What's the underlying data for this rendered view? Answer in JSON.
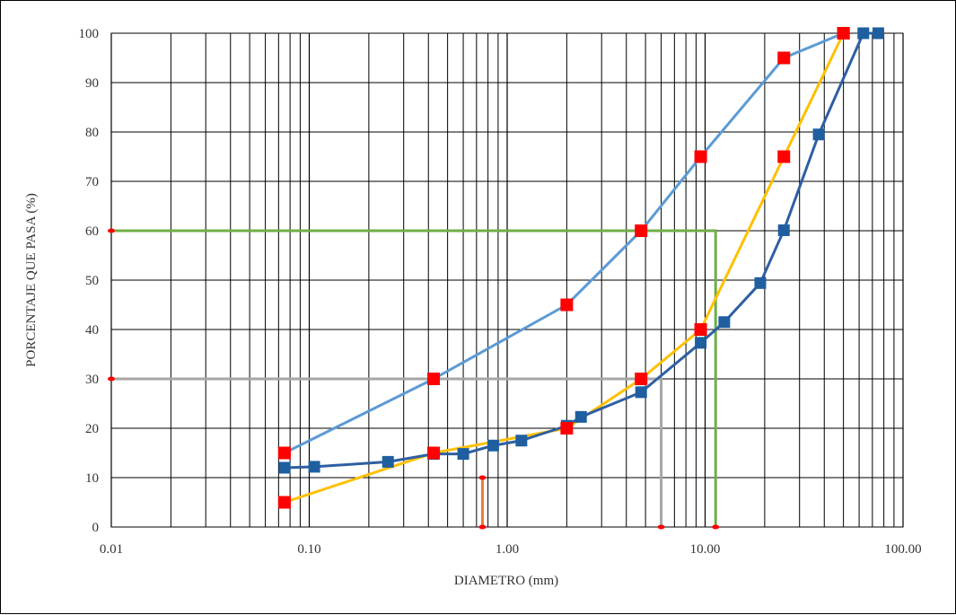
{
  "chart_data": {
    "type": "line",
    "xlabel": "DIAMETRO (mm)",
    "ylabel": "PORCENTAJE QUE PASA (%)",
    "x_scale": "log",
    "xlim": [
      0.01,
      100
    ],
    "ylim": [
      0,
      100
    ],
    "x_tick_labels": [
      "0.01",
      "0.10",
      "1.00",
      "10.00",
      "100.00"
    ],
    "x_tick_values": [
      0.01,
      0.1,
      1,
      10,
      100
    ],
    "y_tick_values": [
      0,
      10,
      20,
      30,
      40,
      50,
      60,
      70,
      80,
      90,
      100
    ],
    "grid": true,
    "legend": "none",
    "series": [
      {
        "color": "#5B9BD5",
        "marker": "none",
        "x": [
          0.075,
          0.425,
          2.0,
          4.75,
          9.5,
          25.0,
          50.0
        ],
        "y": [
          15,
          30,
          45,
          60,
          75,
          95,
          100
        ]
      },
      {
        "color": "#FFC000",
        "marker": "none",
        "x": [
          0.075,
          0.425,
          2.0,
          4.75,
          9.5,
          25.0,
          50.0
        ],
        "y": [
          5,
          15,
          20,
          30,
          40,
          75,
          100
        ]
      },
      {
        "color": "#2E5FA3",
        "marker": "square",
        "marker_color": "#1F5FA0",
        "x": [
          0.075,
          0.106,
          0.25,
          0.425,
          0.6,
          0.85,
          1.18,
          2.0,
          2.36,
          4.75,
          9.5,
          12.5,
          19.0,
          25.0,
          37.5,
          63.0,
          75.0
        ],
        "y": [
          12,
          12.2,
          13.2,
          14.8,
          14.8,
          16.5,
          17.5,
          20.5,
          22.3,
          27.3,
          37.3,
          41.5,
          49.4,
          60.1,
          79.5,
          100,
          100
        ]
      },
      {
        "color": "#FF0000",
        "marker": "square",
        "line": "none",
        "x": [
          0.075,
          0.425,
          2.0,
          4.75,
          9.5,
          25.0,
          50.0,
          0.075,
          0.425,
          2.0,
          4.75,
          9.5,
          25.0,
          50.0
        ],
        "y": [
          15,
          30,
          45,
          60,
          75,
          95,
          100,
          5,
          15,
          20,
          30,
          40,
          75,
          100
        ]
      }
    ],
    "reference_lines": [
      {
        "color": "#70AD47",
        "points": [
          [
            0.01,
            60
          ],
          [
            11.3,
            60
          ],
          [
            11.3,
            0
          ]
        ]
      },
      {
        "color": "#A6A6A6",
        "points": [
          [
            0.01,
            30
          ],
          [
            6.0,
            30
          ],
          [
            6.0,
            0
          ]
        ]
      },
      {
        "color": "#ED7D31",
        "points": [
          [
            0.75,
            10
          ],
          [
            0.75,
            0
          ]
        ]
      }
    ]
  }
}
